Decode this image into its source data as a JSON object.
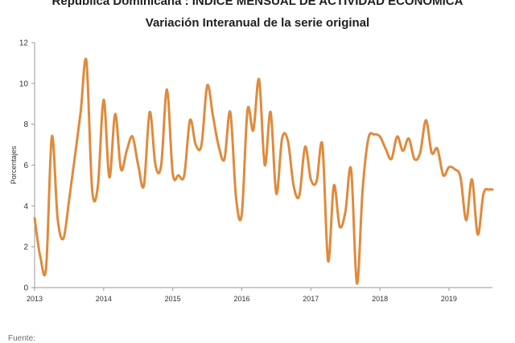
{
  "header": {
    "title": "República Dominicana : ÍNDICE MENSUAL DE ACTIVIDAD ECONÓMICA",
    "subtitle": "Variación Interanual de la serie original"
  },
  "footer": {
    "source_label": "Fuente:"
  },
  "chart_data": {
    "type": "line",
    "title": "Variación Interanual de la serie original",
    "xlabel": "",
    "ylabel": "Porcentajes",
    "xlim": [
      2013.0,
      2019.63
    ],
    "ylim": [
      0,
      12
    ],
    "yticks": [
      0,
      2,
      4,
      6,
      8,
      10,
      12
    ],
    "xticks": [
      "2013",
      "2014",
      "2015",
      "2016",
      "2017",
      "2018",
      "2019"
    ],
    "grid": false,
    "legend": "none",
    "series_color": "#e08a3c",
    "series": [
      {
        "name": "",
        "x": [
          2013.0,
          2013.083,
          2013.167,
          2013.25,
          2013.333,
          2013.417,
          2013.5,
          2013.583,
          2013.667,
          2013.75,
          2013.833,
          2013.917,
          2014.0,
          2014.083,
          2014.167,
          2014.25,
          2014.333,
          2014.417,
          2014.5,
          2014.583,
          2014.667,
          2014.75,
          2014.833,
          2014.917,
          2015.0,
          2015.083,
          2015.167,
          2015.25,
          2015.333,
          2015.417,
          2015.5,
          2015.583,
          2015.667,
          2015.75,
          2015.833,
          2015.917,
          2016.0,
          2016.083,
          2016.167,
          2016.25,
          2016.333,
          2016.417,
          2016.5,
          2016.583,
          2016.667,
          2016.75,
          2016.833,
          2016.917,
          2017.0,
          2017.083,
          2017.167,
          2017.25,
          2017.333,
          2017.417,
          2017.5,
          2017.583,
          2017.667,
          2017.75,
          2017.833,
          2017.917,
          2018.0,
          2018.083,
          2018.167,
          2018.25,
          2018.333,
          2018.417,
          2018.5,
          2018.583,
          2018.667,
          2018.75,
          2018.833,
          2018.917,
          2019.0,
          2019.083,
          2019.167,
          2019.25,
          2019.333,
          2019.417,
          2019.5,
          2019.583,
          2019.63
        ],
        "values": [
          3.4,
          1.5,
          1.0,
          7.4,
          3.4,
          2.4,
          4.3,
          6.4,
          8.6,
          11.1,
          4.8,
          5.0,
          9.2,
          5.4,
          8.5,
          5.8,
          6.7,
          7.4,
          6.0,
          5.0,
          8.6,
          6.0,
          6.0,
          9.7,
          5.6,
          5.5,
          5.5,
          8.2,
          7.0,
          7.0,
          9.9,
          8.4,
          6.9,
          6.3,
          8.6,
          4.4,
          3.6,
          8.7,
          7.7,
          10.2,
          6.0,
          8.6,
          4.6,
          7.3,
          7.2,
          5.0,
          4.5,
          6.9,
          5.3,
          5.2,
          7.0,
          1.3,
          5.0,
          3.0,
          3.7,
          5.8,
          0.2,
          4.8,
          7.3,
          7.5,
          7.4,
          6.8,
          6.3,
          7.4,
          6.7,
          7.3,
          6.3,
          6.6,
          8.2,
          6.6,
          6.8,
          5.5,
          5.9,
          5.8,
          5.4,
          3.3,
          5.3,
          2.6,
          4.6,
          4.8,
          4.8
        ]
      }
    ]
  }
}
